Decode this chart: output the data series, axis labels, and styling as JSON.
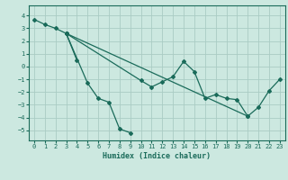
{
  "xlabel": "Humidex (Indice chaleur)",
  "ylabel": "",
  "bg_color": "#cce8e0",
  "grid_color": "#aaccc4",
  "line_color": "#1a6b5a",
  "xlim": [
    -0.5,
    23.5
  ],
  "ylim": [
    -5.8,
    4.8
  ],
  "yticks": [
    -5,
    -4,
    -3,
    -2,
    -1,
    0,
    1,
    2,
    3,
    4
  ],
  "xticks": [
    0,
    1,
    2,
    3,
    4,
    5,
    6,
    7,
    8,
    9,
    10,
    11,
    12,
    13,
    14,
    15,
    16,
    17,
    18,
    19,
    20,
    21,
    22,
    23
  ],
  "series": [
    {
      "x": [
        0,
        1,
        2,
        3,
        4
      ],
      "y": [
        3.7,
        3.3,
        3.0,
        2.6,
        0.5
      ]
    },
    {
      "x": [
        3,
        5,
        6,
        7,
        8,
        9
      ],
      "y": [
        2.6,
        -1.3,
        -2.5,
        -2.8,
        -4.9,
        -5.2
      ]
    },
    {
      "x": [
        3,
        10,
        11,
        12,
        13,
        14,
        15,
        16,
        17,
        18,
        19,
        20
      ],
      "y": [
        2.6,
        -1.1,
        -1.6,
        -1.2,
        -0.8,
        0.4,
        -0.4,
        -2.5,
        -2.2,
        -2.5,
        -2.6,
        -3.9
      ]
    },
    {
      "x": [
        3,
        20,
        21,
        22,
        23
      ],
      "y": [
        2.6,
        -3.9,
        -3.2,
        -1.9,
        -1.0
      ]
    }
  ]
}
